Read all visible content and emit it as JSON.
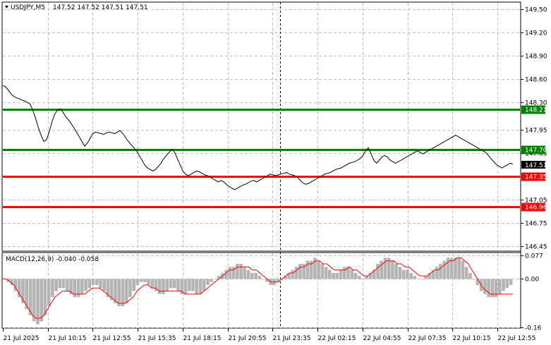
{
  "header": {
    "symbol": "USDJPY,M5",
    "ohlc": "147.52 147.52 147.51 147.51",
    "macd_label": "MACD(12,26,9) -0.040 -0.058"
  },
  "chart_data": [
    {
      "type": "line",
      "title": "USDJPY,M5",
      "price_ticks": [
        "149.50",
        "149.20",
        "148.90",
        "148.60",
        "148.30",
        "147.95",
        "147.65",
        "147.35",
        "147.05",
        "146.75",
        "146.45"
      ],
      "x_ticks": [
        "21 Jul 2025",
        "21 Jul 10:15",
        "21 Jul 12:55",
        "21 Jul 15:35",
        "21 Jul 18:15",
        "21 Jul 20:55",
        "21 Jul 23:35",
        "22 Jul 02:15",
        "22 Jul 04:55",
        "22 Jul 07:35",
        "22 Jul 10:15",
        "22 Jul 12:55"
      ],
      "ylim": [
        146.4,
        149.58
      ],
      "current_price": "147.51",
      "levels": [
        {
          "label": "148.21",
          "value": 148.21,
          "color": "#008000"
        },
        {
          "label": "147.70",
          "value": 147.7,
          "color": "#008000"
        },
        {
          "label": "147.35",
          "value": 147.35,
          "color": "#ff0000"
        },
        {
          "label": "146.96",
          "value": 146.96,
          "color": "#ff0000"
        }
      ],
      "series": [
        {
          "values": [
            148.52,
            148.5,
            148.46,
            148.41,
            148.38,
            148.36,
            148.35,
            148.33,
            148.32,
            148.3,
            148.28,
            148.2,
            148.1,
            147.98,
            147.88,
            147.8,
            147.82,
            147.92,
            148.05,
            148.15,
            148.2,
            148.22,
            148.18,
            148.12,
            148.08,
            148.03,
            147.98,
            147.92,
            147.86,
            147.8,
            147.74,
            147.78,
            147.84,
            147.9,
            147.92,
            147.91,
            147.9,
            147.89,
            147.91,
            147.92,
            147.91,
            147.9,
            147.92,
            147.94,
            147.9,
            147.85,
            147.8,
            147.76,
            147.72,
            147.68,
            147.62,
            147.56,
            147.5,
            147.46,
            147.44,
            147.42,
            147.44,
            147.48,
            147.52,
            147.58,
            147.62,
            147.66,
            147.7,
            147.66,
            147.58,
            147.5,
            147.42,
            147.38,
            147.36,
            147.38,
            147.4,
            147.42,
            147.41,
            147.39,
            147.37,
            147.36,
            147.34,
            147.32,
            147.3,
            147.28,
            147.3,
            147.28,
            147.25,
            147.22,
            147.2,
            147.18,
            147.2,
            147.22,
            147.24,
            147.25,
            147.27,
            147.29,
            147.3,
            147.28,
            147.3,
            147.32,
            147.34,
            147.36,
            147.38,
            147.37,
            147.36,
            147.37,
            147.38,
            147.39,
            147.4,
            147.38,
            147.37,
            147.36,
            147.34,
            147.3,
            147.27,
            147.25,
            147.26,
            147.28,
            147.3,
            147.32,
            147.34,
            147.36,
            147.38,
            147.39,
            147.4,
            147.42,
            147.44,
            147.45,
            147.46,
            147.48,
            147.5,
            147.52,
            147.53,
            147.54,
            147.56,
            147.58,
            147.62,
            147.68,
            147.72,
            147.64,
            147.56,
            147.52,
            147.56,
            147.6,
            147.62,
            147.6,
            147.56,
            147.54,
            147.52,
            147.54,
            147.56,
            147.58,
            147.6,
            147.62,
            147.64,
            147.66,
            147.68,
            147.66,
            147.64,
            147.66,
            147.68,
            147.7,
            147.72,
            147.74,
            147.76,
            147.78,
            147.8,
            147.82,
            147.84,
            147.86,
            147.88,
            147.86,
            147.84,
            147.82,
            147.8,
            147.78,
            147.76,
            147.74,
            147.72,
            147.7,
            147.68,
            147.66,
            147.62,
            147.58,
            147.54,
            147.5,
            147.48,
            147.46,
            147.48,
            147.5,
            147.52,
            147.51
          ]
        }
      ]
    },
    {
      "type": "bar",
      "title": "MACD(12,26,9) -0.040 -0.058",
      "value_ticks": [
        "0.077",
        "0.00",
        "-0.16"
      ],
      "ylim": [
        -0.16,
        0.085
      ],
      "series": [
        {
          "name": "MACD",
          "values": [
            0.0,
            -0.01,
            -0.02,
            -0.04,
            -0.06,
            -0.08,
            -0.1,
            -0.12,
            -0.14,
            -0.15,
            -0.14,
            -0.12,
            -0.09,
            -0.06,
            -0.04,
            -0.03,
            -0.03,
            -0.04,
            -0.05,
            -0.06,
            -0.06,
            -0.05,
            -0.04,
            -0.03,
            -0.02,
            -0.02,
            -0.03,
            -0.04,
            -0.06,
            -0.07,
            -0.08,
            -0.09,
            -0.09,
            -0.08,
            -0.06,
            -0.04,
            -0.02,
            -0.01,
            -0.01,
            -0.02,
            -0.03,
            -0.04,
            -0.05,
            -0.05,
            -0.04,
            -0.03,
            -0.03,
            -0.04,
            -0.05,
            -0.05,
            -0.04,
            -0.04,
            -0.05,
            -0.05,
            -0.04,
            -0.02,
            -0.01,
            0.0,
            0.01,
            0.02,
            0.03,
            0.04,
            0.04,
            0.05,
            0.05,
            0.04,
            0.03,
            0.02,
            0.02,
            0.01,
            0.0,
            -0.01,
            -0.02,
            -0.02,
            -0.01,
            0.0,
            0.01,
            0.02,
            0.03,
            0.04,
            0.05,
            0.05,
            0.06,
            0.06,
            0.07,
            0.06,
            0.05,
            0.04,
            0.03,
            0.02,
            0.02,
            0.03,
            0.04,
            0.04,
            0.03,
            0.02,
            0.01,
            0.0,
            0.01,
            0.02,
            0.03,
            0.05,
            0.06,
            0.07,
            0.07,
            0.06,
            0.05,
            0.04,
            0.03,
            0.03,
            0.02,
            0.01,
            0.0,
            0.0,
            0.01,
            0.02,
            0.03,
            0.04,
            0.05,
            0.06,
            0.07,
            0.07,
            0.07,
            0.07,
            0.06,
            0.04,
            0.02,
            0.0,
            -0.02,
            -0.04,
            -0.05,
            -0.06,
            -0.06,
            -0.06,
            -0.05,
            -0.04,
            -0.03,
            -0.02
          ]
        },
        {
          "name": "Signal",
          "values": [
            0.0,
            0.0,
            -0.01,
            -0.02,
            -0.04,
            -0.06,
            -0.08,
            -0.1,
            -0.12,
            -0.13,
            -0.13,
            -0.12,
            -0.1,
            -0.08,
            -0.06,
            -0.05,
            -0.04,
            -0.04,
            -0.04,
            -0.05,
            -0.05,
            -0.05,
            -0.05,
            -0.04,
            -0.03,
            -0.03,
            -0.03,
            -0.04,
            -0.05,
            -0.06,
            -0.07,
            -0.08,
            -0.08,
            -0.08,
            -0.07,
            -0.06,
            -0.04,
            -0.03,
            -0.02,
            -0.02,
            -0.03,
            -0.03,
            -0.04,
            -0.04,
            -0.04,
            -0.04,
            -0.04,
            -0.04,
            -0.04,
            -0.05,
            -0.05,
            -0.05,
            -0.05,
            -0.05,
            -0.04,
            -0.03,
            -0.02,
            -0.01,
            0.0,
            0.01,
            0.02,
            0.03,
            0.03,
            0.04,
            0.04,
            0.04,
            0.04,
            0.03,
            0.03,
            0.02,
            0.01,
            0.0,
            -0.01,
            -0.01,
            -0.01,
            0.0,
            0.01,
            0.02,
            0.02,
            0.03,
            0.04,
            0.04,
            0.05,
            0.05,
            0.06,
            0.06,
            0.05,
            0.05,
            0.04,
            0.03,
            0.03,
            0.03,
            0.03,
            0.04,
            0.03,
            0.03,
            0.02,
            0.01,
            0.01,
            0.02,
            0.03,
            0.04,
            0.05,
            0.06,
            0.06,
            0.06,
            0.05,
            0.05,
            0.04,
            0.04,
            0.03,
            0.02,
            0.01,
            0.01,
            0.01,
            0.02,
            0.03,
            0.03,
            0.04,
            0.05,
            0.06,
            0.06,
            0.07,
            0.07,
            0.06,
            0.05,
            0.03,
            0.01,
            -0.01,
            -0.03,
            -0.04,
            -0.05,
            -0.05,
            -0.05,
            -0.05,
            -0.05,
            -0.05,
            -0.05
          ]
        }
      ]
    }
  ]
}
